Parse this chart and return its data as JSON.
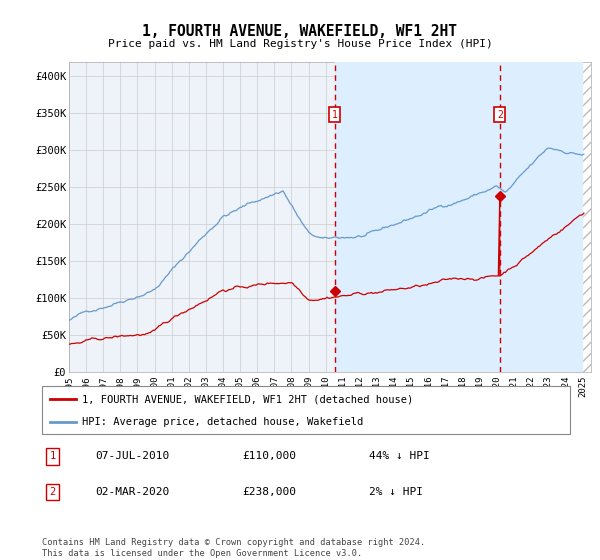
{
  "title": "1, FOURTH AVENUE, WAKEFIELD, WF1 2HT",
  "subtitle": "Price paid vs. HM Land Registry's House Price Index (HPI)",
  "legend_line1": "1, FOURTH AVENUE, WAKEFIELD, WF1 2HT (detached house)",
  "legend_line2": "HPI: Average price, detached house, Wakefield",
  "marker1_date": "07-JUL-2010",
  "marker1_price": "£110,000",
  "marker1_hpi": "44% ↓ HPI",
  "marker1_year": 2010.52,
  "marker1_value": 110000,
  "marker2_date": "02-MAR-2020",
  "marker2_price": "£238,000",
  "marker2_hpi": "2% ↓ HPI",
  "marker2_year": 2020.17,
  "marker2_value": 238000,
  "footer": "Contains HM Land Registry data © Crown copyright and database right 2024.\nThis data is licensed under the Open Government Licence v3.0.",
  "red_color": "#cc0000",
  "blue_color": "#6699cc",
  "shade_color": "#ddeeff",
  "bg_plot_color": "#eef3fa",
  "background_color": "#ffffff",
  "grid_color": "#cccccc",
  "ylim": [
    0,
    420000
  ],
  "xlim_left": 1995.0,
  "xlim_right": 2025.5,
  "data_end": 2025.0,
  "yticks": [
    0,
    50000,
    100000,
    150000,
    200000,
    250000,
    300000,
    350000,
    400000
  ],
  "ytick_labels": [
    "£0",
    "£50K",
    "£100K",
    "£150K",
    "£200K",
    "£250K",
    "£300K",
    "£350K",
    "£400K"
  ],
  "xticks": [
    1995,
    1996,
    1997,
    1998,
    1999,
    2000,
    2001,
    2002,
    2003,
    2004,
    2005,
    2006,
    2007,
    2008,
    2009,
    2010,
    2011,
    2012,
    2013,
    2014,
    2015,
    2016,
    2017,
    2018,
    2019,
    2020,
    2021,
    2022,
    2023,
    2024,
    2025
  ]
}
